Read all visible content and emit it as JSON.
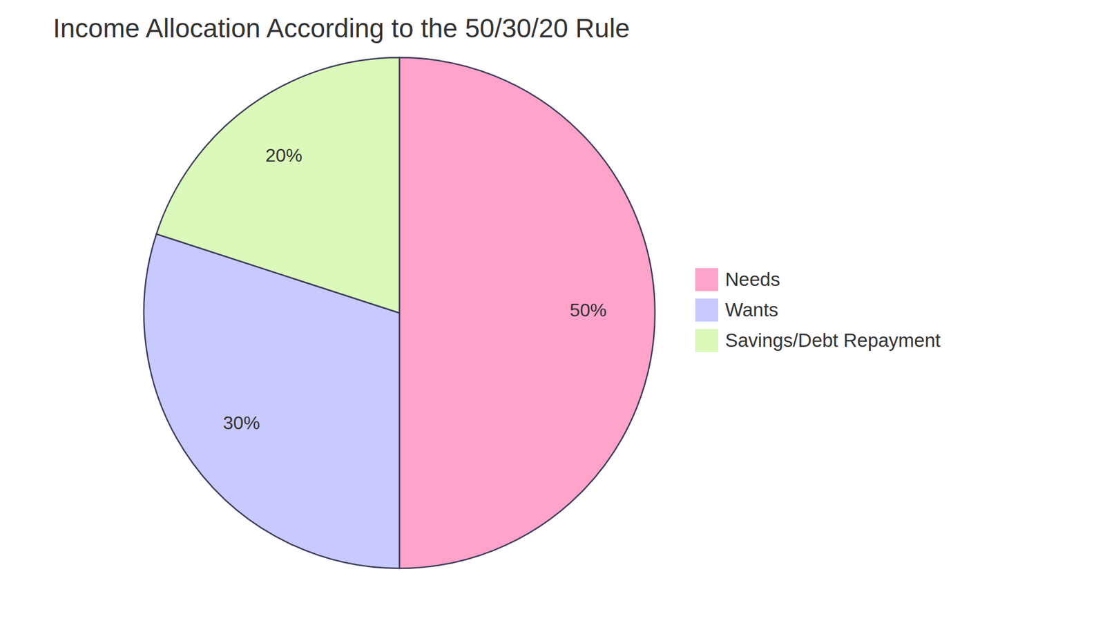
{
  "chart_data": {
    "type": "pie",
    "title": "Income Allocation According to the 50/30/20 Rule",
    "categories": [
      "Needs",
      "Wants",
      "Savings/Debt Repayment"
    ],
    "values": [
      50,
      30,
      20
    ],
    "value_labels": [
      "50%",
      "30%",
      "20%"
    ],
    "colors": [
      "#FFA3CB",
      "#C8CAFF",
      "#DBF9BA"
    ],
    "data_labels": true,
    "legend": "right"
  }
}
